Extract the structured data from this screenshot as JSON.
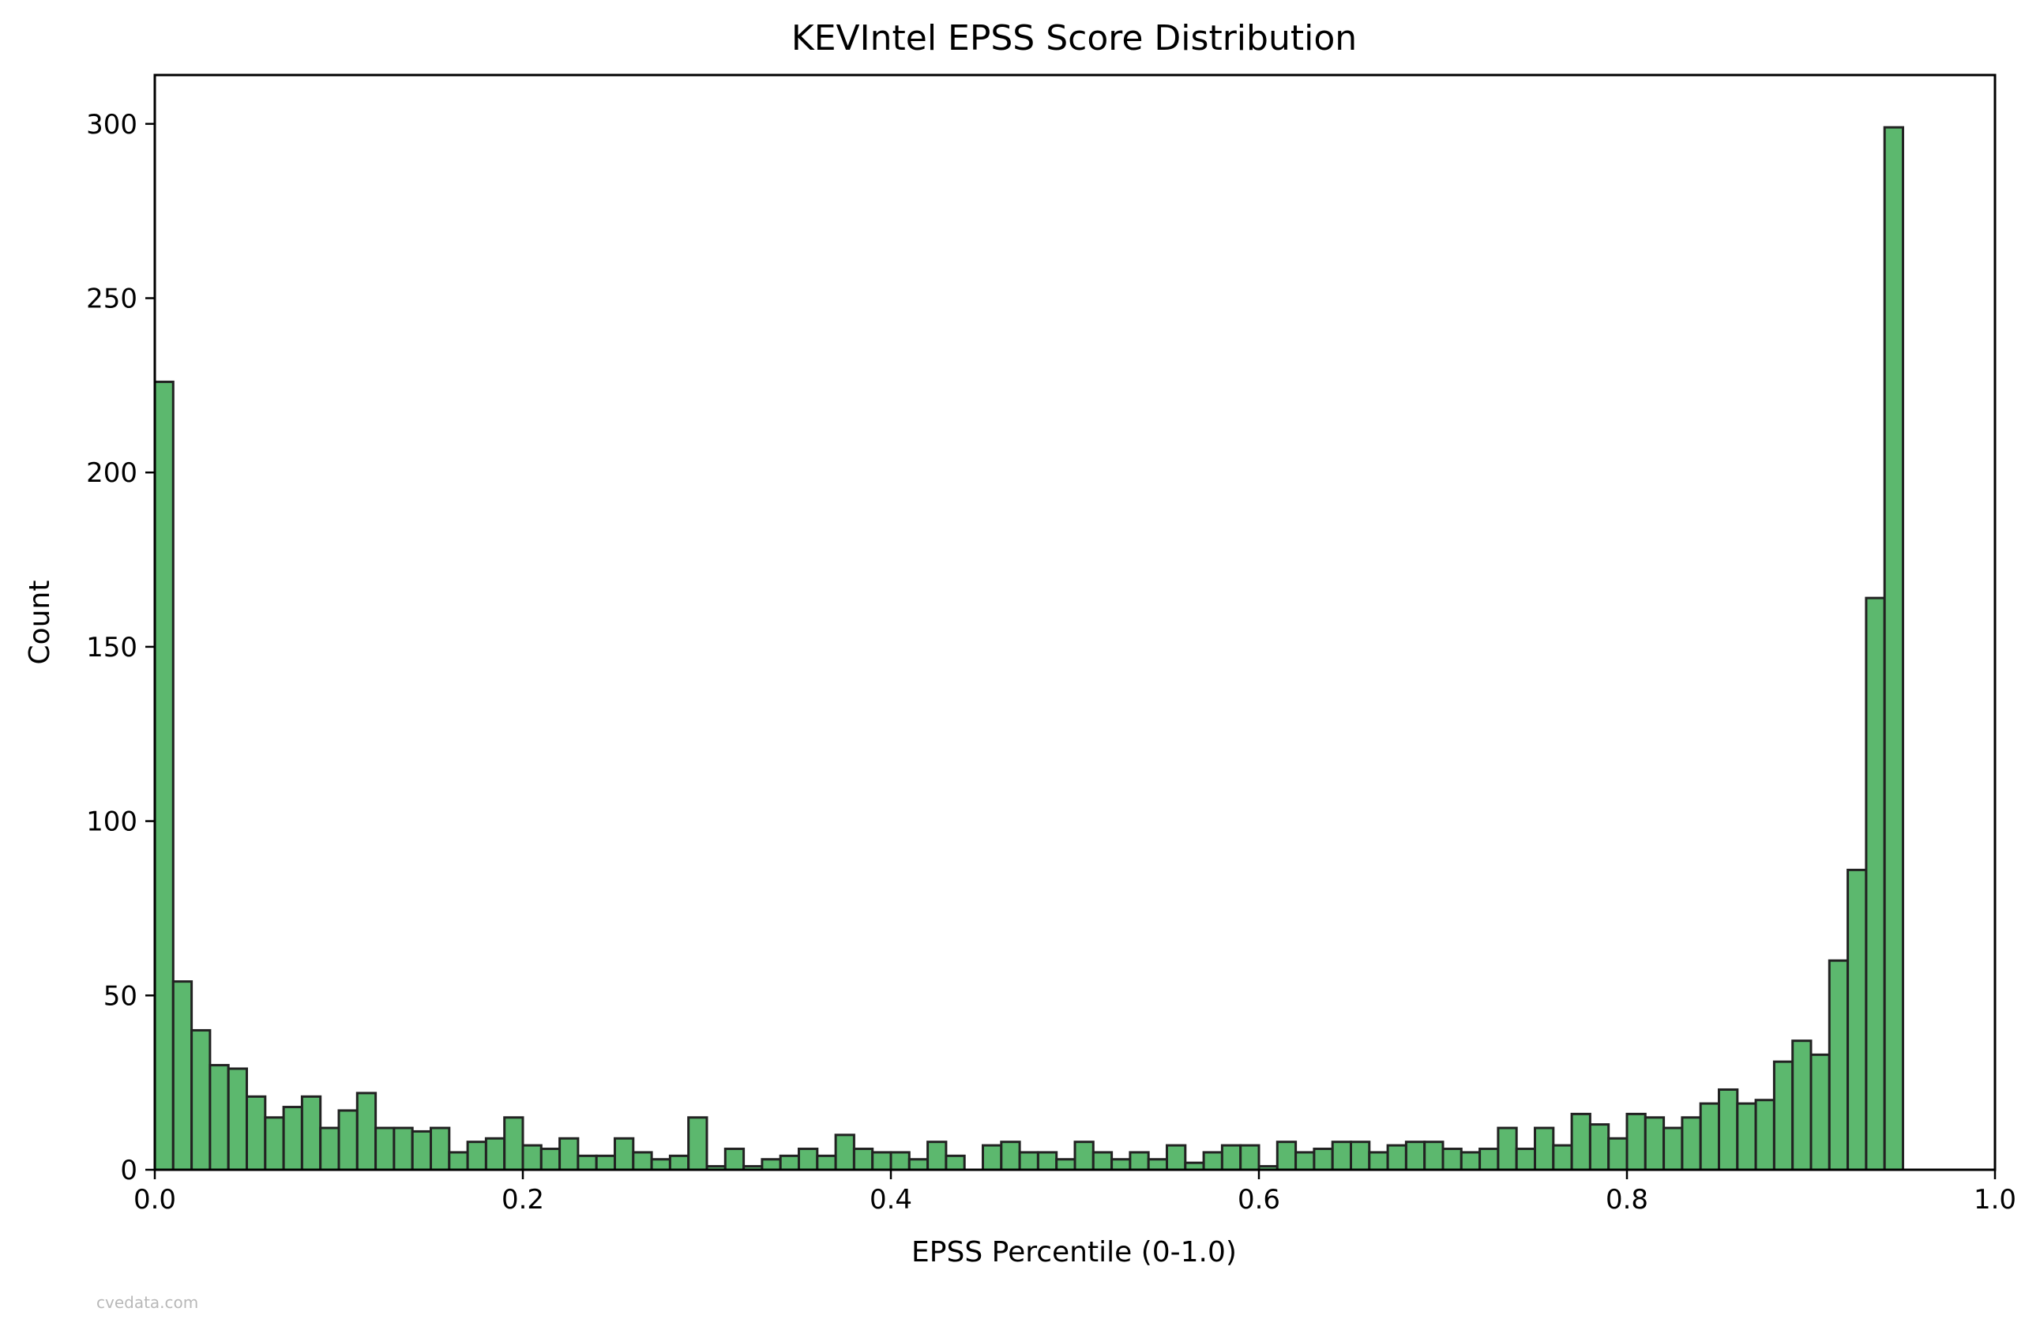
{
  "chart_data": {
    "type": "bar",
    "title": "KEVIntel EPSS Score Distribution",
    "xlabel": "EPSS Percentile (0-1.0)",
    "ylabel": "Count",
    "xlim": [
      0,
      1.0
    ],
    "ylim": [
      0,
      314
    ],
    "xticks": [
      "0.0",
      "0.2",
      "0.4",
      "0.6",
      "0.8",
      "1.0"
    ],
    "xtick_values": [
      0,
      0.2,
      0.4,
      0.6,
      0.8,
      1.0
    ],
    "yticks": [
      "0",
      "50",
      "100",
      "150",
      "200",
      "250",
      "300"
    ],
    "ytick_values": [
      0,
      50,
      100,
      150,
      200,
      250,
      300
    ],
    "grid": false,
    "bin_start": 0.0,
    "bin_width": 0.01,
    "bar_color": "#5cb86e",
    "edge_color": "#222222",
    "values": [
      226,
      54,
      40,
      30,
      29,
      21,
      15,
      18,
      21,
      12,
      17,
      22,
      12,
      12,
      11,
      12,
      5,
      8,
      9,
      15,
      7,
      6,
      9,
      4,
      4,
      9,
      5,
      3,
      4,
      15,
      1,
      6,
      1,
      3,
      4,
      6,
      4,
      10,
      6,
      5,
      5,
      3,
      8,
      4,
      0,
      7,
      8,
      5,
      5,
      3,
      8,
      5,
      3,
      5,
      3,
      7,
      2,
      5,
      7,
      7,
      1,
      8,
      5,
      6,
      8,
      8,
      5,
      7,
      8,
      8,
      6,
      5,
      6,
      12,
      6,
      12,
      7,
      16,
      13,
      9,
      16,
      15,
      12,
      15,
      19,
      23,
      19,
      20,
      31,
      37,
      33,
      60,
      86,
      164,
      299
    ]
  },
  "watermark": "cvedata.com"
}
